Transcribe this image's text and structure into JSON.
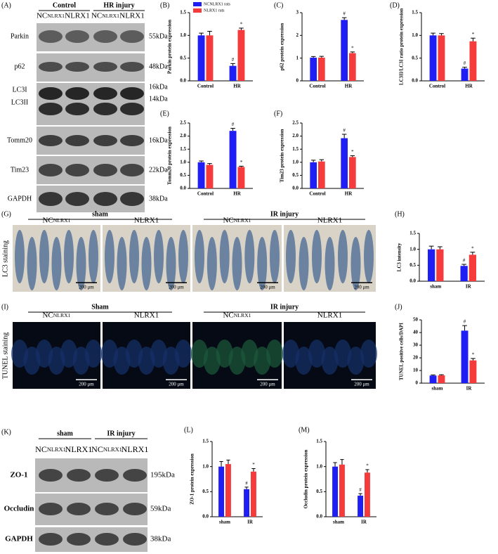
{
  "panel_a": {
    "label": "(A)",
    "groups": [
      "Control",
      "HR injury"
    ],
    "lanes": [
      {
        "text": "NC",
        "sub": "NLRX1"
      },
      {
        "text": "NLRX1"
      },
      {
        "text": "NC",
        "sub": "NLRX1"
      },
      {
        "text": "NLRX1"
      }
    ],
    "rows": [
      {
        "name": "Parkin",
        "size": "55kDa"
      },
      {
        "name": "p62",
        "size": "48kDa"
      },
      {
        "name": "LC3I",
        "size": "16kDa"
      },
      {
        "name": "LC3II",
        "size": "14kDa"
      },
      {
        "name": "Tomm20",
        "size": "16kDa"
      },
      {
        "name": "Tim23",
        "size": "22kDa"
      },
      {
        "name": "GAPDH",
        "size": "38kDa"
      }
    ]
  },
  "panel_g": {
    "label": "(G)",
    "side": "LC3 staining",
    "groups": [
      "sham",
      "IR injury"
    ],
    "lanes": [
      {
        "text": "NC",
        "sub": "NLRX1"
      },
      {
        "text": "NLRX1"
      },
      {
        "text": "NC",
        "sub": "NLRX1"
      },
      {
        "text": "NLRX1"
      }
    ],
    "scale_bars": [
      "200 μm",
      "200 μm",
      "200 μm",
      "200 μm"
    ]
  },
  "panel_i": {
    "label": "(I)",
    "side": "TUNEL staining",
    "groups": [
      "Sham",
      "IR injury"
    ],
    "lanes": [
      {
        "text": "NC",
        "sub": "NLRX1"
      },
      {
        "text": "NLRX1"
      },
      {
        "text": "NC",
        "sub": "NLRX1"
      },
      {
        "text": "NLRX1"
      }
    ],
    "scale_bars": [
      "200 μm",
      "200 μm",
      "200 μm",
      "200 μm"
    ]
  },
  "panel_k": {
    "label": "(K)",
    "groups": [
      "sham",
      "IR injury"
    ],
    "lanes": [
      {
        "text": "NC",
        "sub": "NLRX1"
      },
      {
        "text": "NLRX1"
      },
      {
        "text": "NC",
        "sub": "NLRX1"
      },
      {
        "text": "NLRX1"
      }
    ],
    "rows": [
      {
        "name": "ZO-1",
        "size": "195kDa"
      },
      {
        "name": "Occludin",
        "size": "59kDa"
      },
      {
        "name": "GAPDH",
        "size": "38kDa"
      }
    ]
  },
  "chart_data": [
    {
      "type": "bar",
      "label": "(B)",
      "ylabel": "Parkin protein expression",
      "categories": [
        "Control",
        "HR"
      ],
      "ylim": [
        0,
        1.5
      ],
      "yticks": [
        {
          "value": 0,
          "label": "0.0"
        },
        0.5,
        {
          "value": 1,
          "label": "1.0"
        },
        1.5
      ],
      "series": [
        {
          "name": "NCNLRX1 rats",
          "color": "#1f1ff5",
          "values": [
            1.0,
            0.33
          ],
          "errors": [
            0.05,
            0.05
          ],
          "markers": [
            null,
            "#"
          ]
        },
        {
          "name": "NLRX1 rats",
          "color": "#f53b3b",
          "values": [
            1.0,
            1.12
          ],
          "errors": [
            0.09,
            0.04
          ],
          "markers": [
            null,
            "*"
          ]
        }
      ]
    },
    {
      "type": "bar",
      "label": "(C)",
      "ylabel": "p62 protein expression",
      "categories": [
        "Control",
        "HR"
      ],
      "ylim": [
        0,
        3
      ],
      "yticks": [
        0,
        1,
        2,
        3
      ],
      "series": [
        {
          "color": "#1f1ff5",
          "values": [
            1.02,
            2.68
          ],
          "errors": [
            0.05,
            0.1
          ],
          "markers": [
            null,
            "#"
          ]
        },
        {
          "color": "#f53b3b",
          "values": [
            1.02,
            1.22
          ],
          "errors": [
            0.06,
            0.05
          ],
          "markers": [
            null,
            "*"
          ]
        }
      ]
    },
    {
      "type": "bar",
      "label": "(D)",
      "ylabel": "LC3II/LC3I ratio protein expression",
      "categories": [
        "Control",
        "HR"
      ],
      "ylim": [
        0,
        1.5
      ],
      "yticks": [
        {
          "value": 0,
          "label": "0.0"
        },
        0.5,
        {
          "value": 1,
          "label": "1.0"
        },
        1.5
      ],
      "series": [
        {
          "color": "#1f1ff5",
          "values": [
            1.0,
            0.27
          ],
          "errors": [
            0.05,
            0.03
          ],
          "markers": [
            null,
            "#"
          ]
        },
        {
          "color": "#f53b3b",
          "values": [
            1.0,
            0.87
          ],
          "errors": [
            0.04,
            0.07
          ],
          "markers": [
            null,
            "*"
          ]
        }
      ]
    },
    {
      "type": "bar",
      "label": "(E)",
      "ylabel": "Tomm20 protein expression",
      "categories": [
        "Control",
        "HR"
      ],
      "ylim": [
        0,
        2.5
      ],
      "yticks": [
        {
          "value": 0,
          "label": "0.0"
        },
        0.5,
        {
          "value": 1,
          "label": "1.0"
        },
        1.5,
        {
          "value": 2,
          "label": "2.0"
        },
        2.5
      ],
      "series": [
        {
          "color": "#1f1ff5",
          "values": [
            1.0,
            2.2
          ],
          "errors": [
            0.05,
            0.1
          ],
          "markers": [
            null,
            "#"
          ]
        },
        {
          "color": "#f53b3b",
          "values": [
            0.9,
            0.82
          ],
          "errors": [
            0.05,
            0.03
          ],
          "markers": [
            null,
            "*"
          ]
        }
      ]
    },
    {
      "type": "bar",
      "label": "(F)",
      "ylabel": "Tim23 protein expression",
      "categories": [
        "Control",
        "HR"
      ],
      "ylim": [
        0,
        2.5
      ],
      "yticks": [
        {
          "value": 0,
          "label": "0.0"
        },
        0.5,
        {
          "value": 1,
          "label": "1.0"
        },
        1.5,
        {
          "value": 2,
          "label": "2.0"
        },
        2.5
      ],
      "series": [
        {
          "color": "#1f1ff5",
          "values": [
            1.0,
            1.92
          ],
          "errors": [
            0.08,
            0.15
          ],
          "markers": [
            null,
            "#"
          ]
        },
        {
          "color": "#f53b3b",
          "values": [
            1.03,
            1.2
          ],
          "errors": [
            0.07,
            0.05
          ],
          "markers": [
            null,
            "*"
          ]
        }
      ]
    },
    {
      "type": "bar",
      "label": "(H)",
      "ylabel": "LC3 intensity",
      "categories": [
        "sham",
        "IR"
      ],
      "ylim": [
        0,
        1.5
      ],
      "yticks": [
        {
          "value": 0,
          "label": "0.0"
        },
        0.5,
        {
          "value": 1,
          "label": "1.0"
        },
        1.5
      ],
      "series": [
        {
          "color": "#1f1ff5",
          "values": [
            1.0,
            0.48
          ],
          "errors": [
            0.1,
            0.05
          ],
          "markers": [
            null,
            "#"
          ]
        },
        {
          "color": "#f53b3b",
          "values": [
            1.0,
            0.83
          ],
          "errors": [
            0.08,
            0.08
          ],
          "markers": [
            null,
            "*"
          ]
        }
      ]
    },
    {
      "type": "bar",
      "label": "(J)",
      "ylabel": "TUNEL positive cells/DAPI",
      "categories": [
        "sham",
        "IR"
      ],
      "ylim": [
        0,
        50
      ],
      "yticks": [
        0,
        10,
        20,
        30,
        40,
        50
      ],
      "series": [
        {
          "color": "#1f1ff5",
          "values": [
            6,
            41.5
          ],
          "errors": [
            0.5,
            4
          ],
          "markers": [
            null,
            "#"
          ]
        },
        {
          "color": "#f53b3b",
          "values": [
            6.2,
            18
          ],
          "errors": [
            0.5,
            1.5
          ],
          "markers": [
            null,
            "*"
          ]
        }
      ]
    },
    {
      "type": "bar",
      "label": "(L)",
      "ylabel": "ZO-1 protein expression",
      "categories": [
        "sham",
        "IR"
      ],
      "ylim": [
        0,
        1.5
      ],
      "yticks": [
        {
          "value": 0,
          "label": "0.0"
        },
        0.5,
        {
          "value": 1,
          "label": "1.0"
        },
        1.5
      ],
      "series": [
        {
          "color": "#1f1ff5",
          "values": [
            1.0,
            0.55
          ],
          "errors": [
            0.1,
            0.04
          ],
          "markers": [
            null,
            "#"
          ]
        },
        {
          "color": "#f53b3b",
          "values": [
            1.05,
            0.9
          ],
          "errors": [
            0.08,
            0.06
          ],
          "markers": [
            null,
            "*"
          ]
        }
      ]
    },
    {
      "type": "bar",
      "label": "(M)",
      "ylabel": "Occludin protein expression",
      "categories": [
        "sham",
        "IR"
      ],
      "ylim": [
        0,
        1.5
      ],
      "yticks": [
        {
          "value": 0,
          "label": "0.0"
        },
        0.5,
        {
          "value": 1,
          "label": "1.0"
        },
        1.5
      ],
      "series": [
        {
          "color": "#1f1ff5",
          "values": [
            1.0,
            0.42
          ],
          "errors": [
            0.08,
            0.04
          ],
          "markers": [
            null,
            "#"
          ]
        },
        {
          "color": "#f53b3b",
          "values": [
            1.04,
            0.88
          ],
          "errors": [
            0.1,
            0.06
          ],
          "markers": [
            null,
            "*"
          ]
        }
      ]
    }
  ]
}
